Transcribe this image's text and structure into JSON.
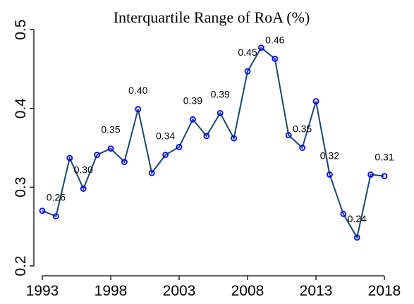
{
  "chart_data": {
    "type": "line",
    "title": "Interquartile Range of RoA (%)",
    "x": [
      1993,
      1994,
      1995,
      1996,
      1997,
      1998,
      1999,
      2000,
      2001,
      2002,
      2003,
      2004,
      2005,
      2006,
      2007,
      2008,
      2009,
      2010,
      2011,
      2012,
      2013,
      2014,
      2015,
      2016,
      2017,
      2018
    ],
    "series": [
      {
        "color": "#1a476f",
        "marker_color": "#0000ff",
        "values": [
          0.27,
          0.263,
          0.337,
          0.298,
          0.341,
          0.349,
          0.332,
          0.399,
          0.318,
          0.341,
          0.351,
          0.386,
          0.365,
          0.394,
          0.362,
          0.447,
          0.477,
          0.463,
          0.366,
          0.35,
          0.409,
          0.316,
          0.266,
          0.236,
          0.316,
          0.314
        ],
        "value_labels": [
          null,
          "0.26",
          null,
          "0.30",
          null,
          "0.35",
          null,
          "0.40",
          null,
          "0.34",
          null,
          "0.39",
          null,
          "0.39",
          null,
          "0.45",
          null,
          "0.46",
          null,
          "0.35",
          null,
          "0.32",
          null,
          "0.24",
          null,
          "0.31"
        ]
      }
    ],
    "xlim": [
      1993,
      2018
    ],
    "xticks": [
      1993,
      1998,
      2003,
      2008,
      2013,
      2018
    ],
    "ylim": [
      0.2,
      0.5
    ],
    "yticks": [
      0.2,
      0.3,
      0.4,
      0.5
    ]
  }
}
